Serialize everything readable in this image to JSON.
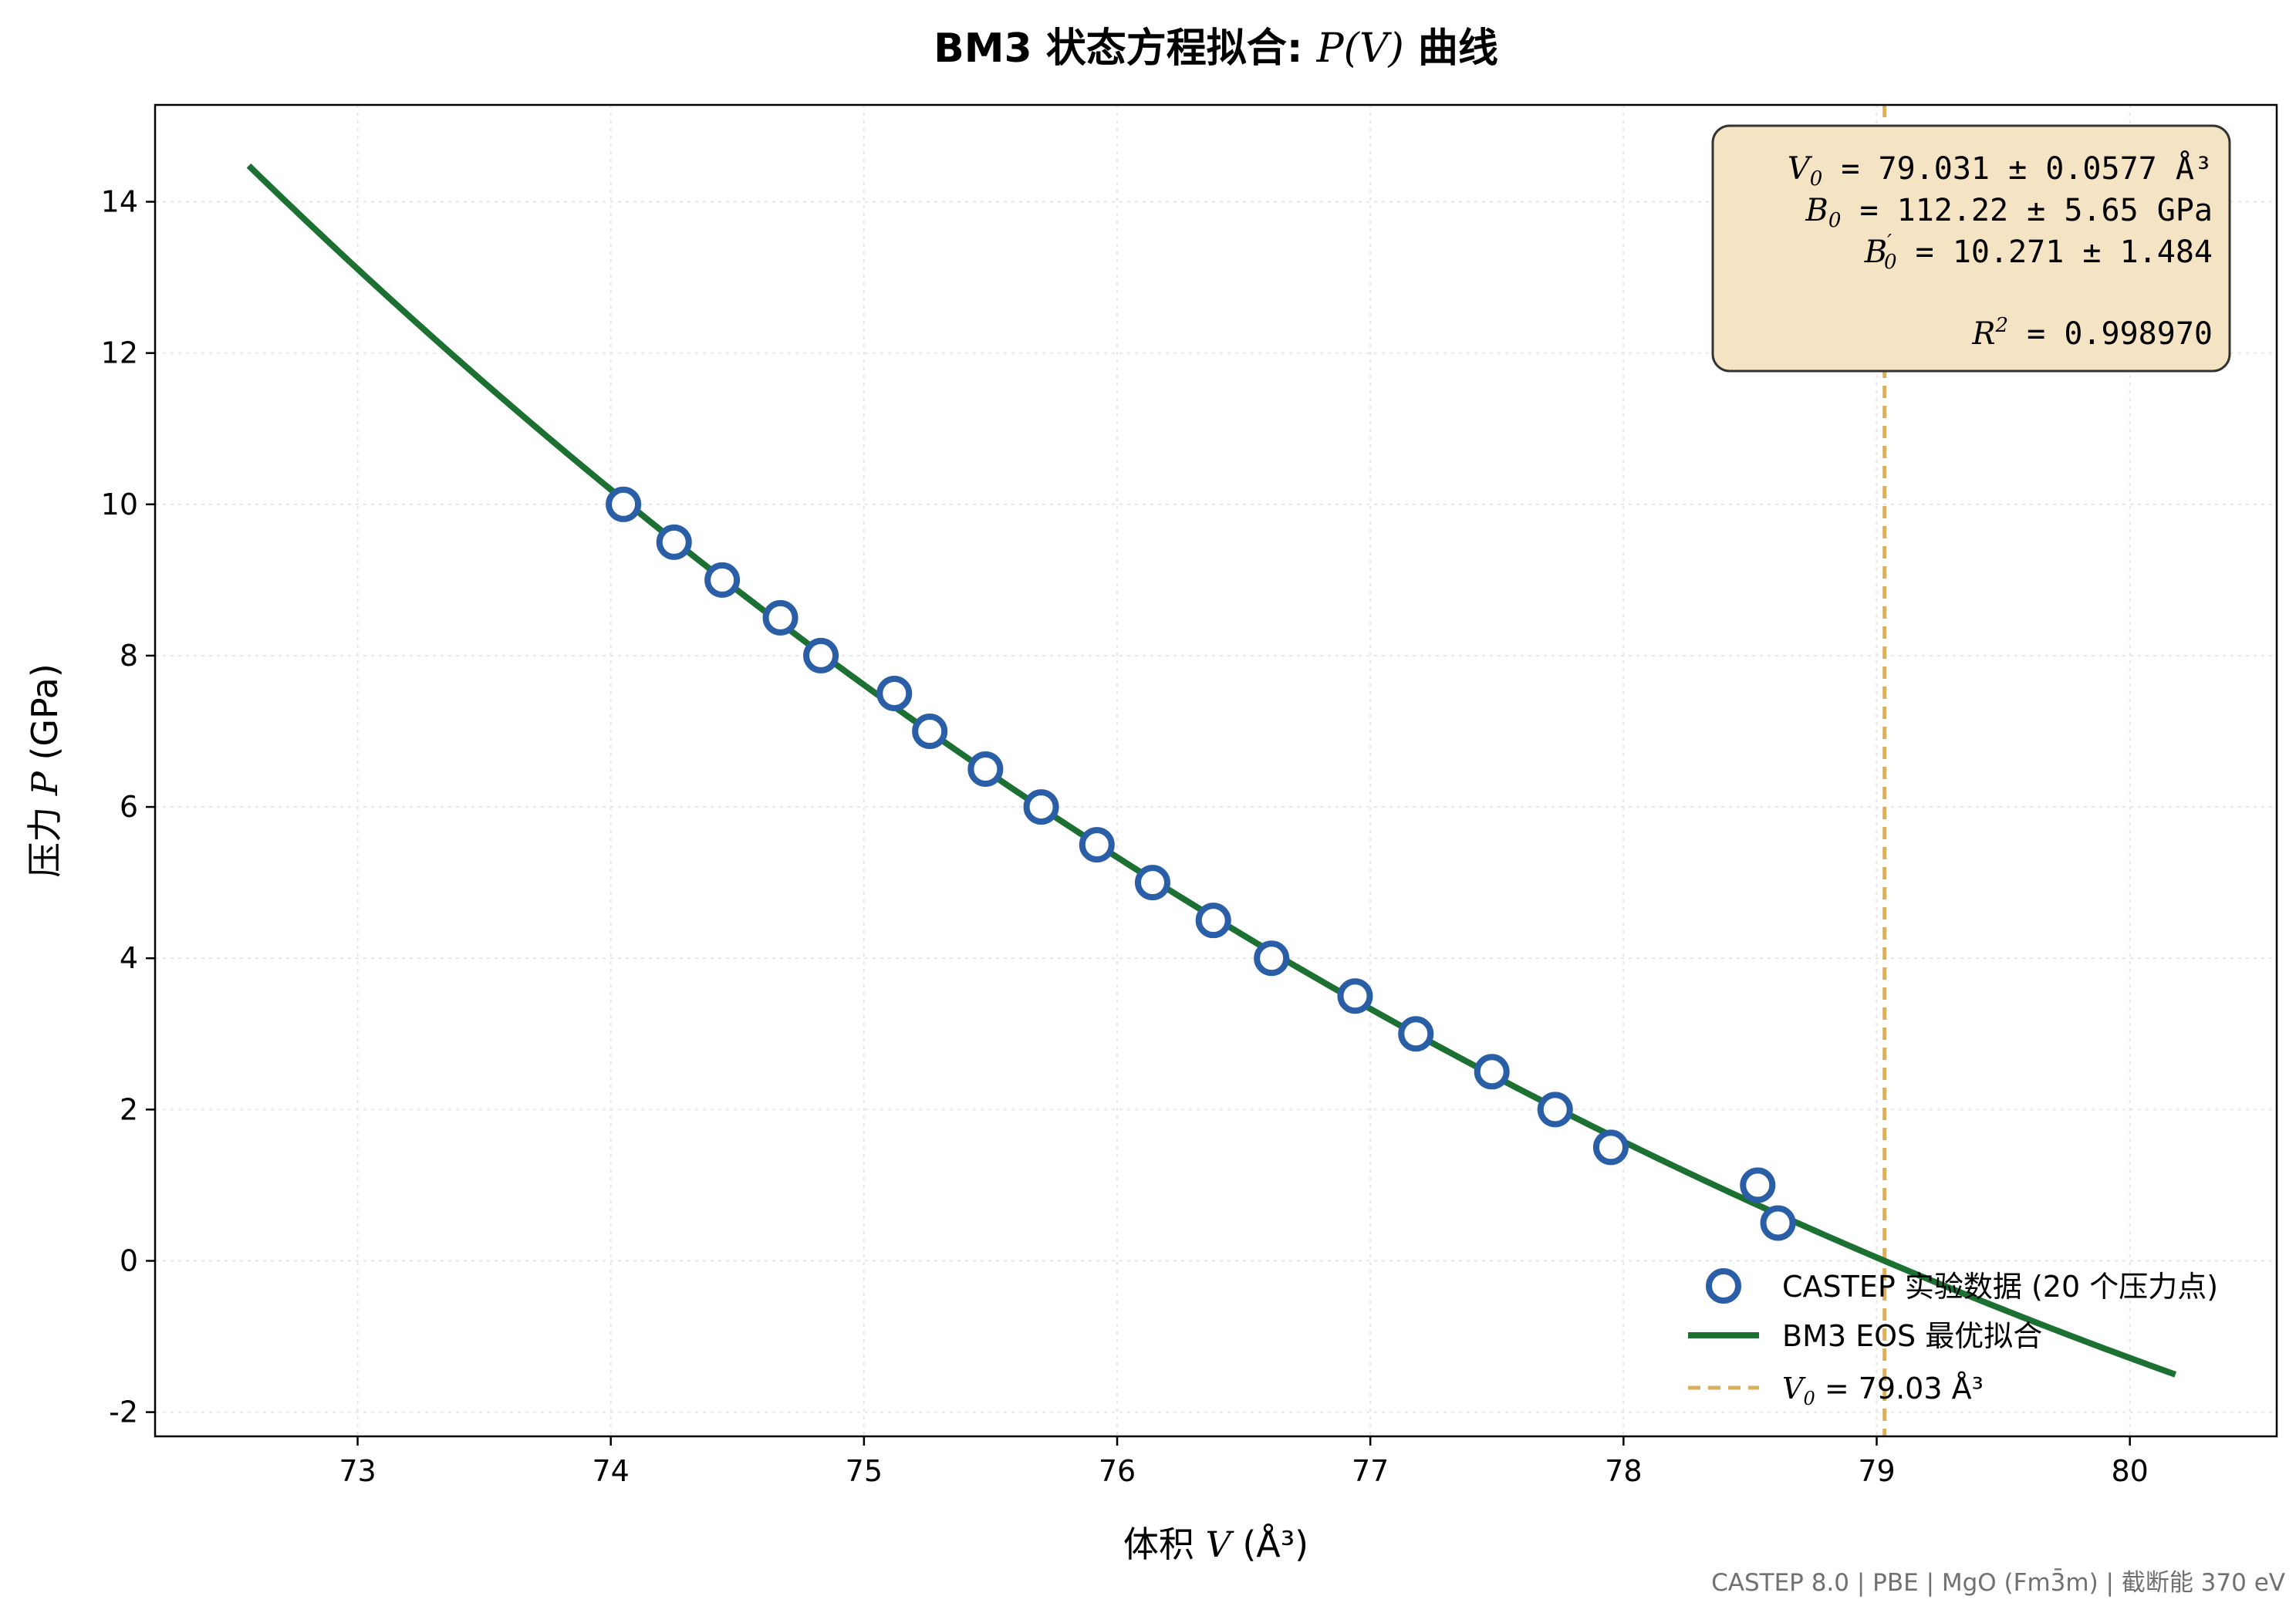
{
  "chart_data": {
    "type": "scatter",
    "title_prefix": "BM3 状态方程拟合: ",
    "title_math": "P(V)",
    "title_suffix": " 曲线",
    "xlabel_prefix": "体积 ",
    "xlabel_math": "V",
    "xlabel_suffix": " (Å³)",
    "ylabel_prefix": "压力 ",
    "ylabel_math": "P",
    "ylabel_suffix": " (GPa)",
    "xlim": [
      72.2,
      80.58
    ],
    "ylim": [
      -2.32,
      15.28
    ],
    "xticks": [
      73,
      74,
      75,
      76,
      77,
      78,
      79,
      80
    ],
    "yticks": [
      -2,
      0,
      2,
      4,
      6,
      8,
      10,
      12,
      14
    ],
    "ytick_labels": [
      "-2",
      "0",
      "2",
      "4",
      "6",
      "8",
      "10",
      "12",
      "14"
    ],
    "grid": true,
    "series": [
      {
        "name": "CASTEP 实验数据 (20 个压力点)",
        "kind": "scatter",
        "color": "#2a5fa8",
        "points": [
          {
            "x": 74.05,
            "y": 10.0
          },
          {
            "x": 74.25,
            "y": 9.5
          },
          {
            "x": 74.44,
            "y": 9.0
          },
          {
            "x": 74.67,
            "y": 8.5
          },
          {
            "x": 74.83,
            "y": 8.0
          },
          {
            "x": 75.12,
            "y": 7.5
          },
          {
            "x": 75.26,
            "y": 7.0
          },
          {
            "x": 75.48,
            "y": 6.5
          },
          {
            "x": 75.7,
            "y": 6.0
          },
          {
            "x": 75.92,
            "y": 5.5
          },
          {
            "x": 76.14,
            "y": 5.0
          },
          {
            "x": 76.38,
            "y": 4.5
          },
          {
            "x": 76.61,
            "y": 4.0
          },
          {
            "x": 76.94,
            "y": 3.5
          },
          {
            "x": 77.18,
            "y": 3.0
          },
          {
            "x": 77.48,
            "y": 2.5
          },
          {
            "x": 77.73,
            "y": 2.0
          },
          {
            "x": 77.95,
            "y": 1.5
          },
          {
            "x": 78.53,
            "y": 1.0
          },
          {
            "x": 78.61,
            "y": 0.5
          }
        ]
      },
      {
        "name": "BM3 EOS 最优拟合",
        "kind": "line",
        "color": "#1b7032",
        "fit_params": {
          "V0": 79.031,
          "B0": 112.22,
          "B0p": 10.271
        },
        "x_range": [
          72.57,
          80.18
        ]
      },
      {
        "name_math": "V0",
        "name_text": " = 79.03 Å³",
        "kind": "vline",
        "color": "#d8b060",
        "x": 79.031
      }
    ],
    "stats": {
      "v0_value": " = 79.031 ± 0.0577 Å³",
      "b0_value": " = 112.22 ± 5.65 GPa",
      "b0p_value": " = 10.271 ± 1.484",
      "r2_value": " = 0.998970"
    },
    "legend_position": "lower right",
    "footer": "CASTEP 8.0 | PBE | MgO (Fm3̄m) | 截断能 370 eV"
  },
  "colors": {
    "stats_box_fill": "#f5e4c3",
    "stats_box_border": "#333333",
    "grid": "#e6e6e6"
  }
}
